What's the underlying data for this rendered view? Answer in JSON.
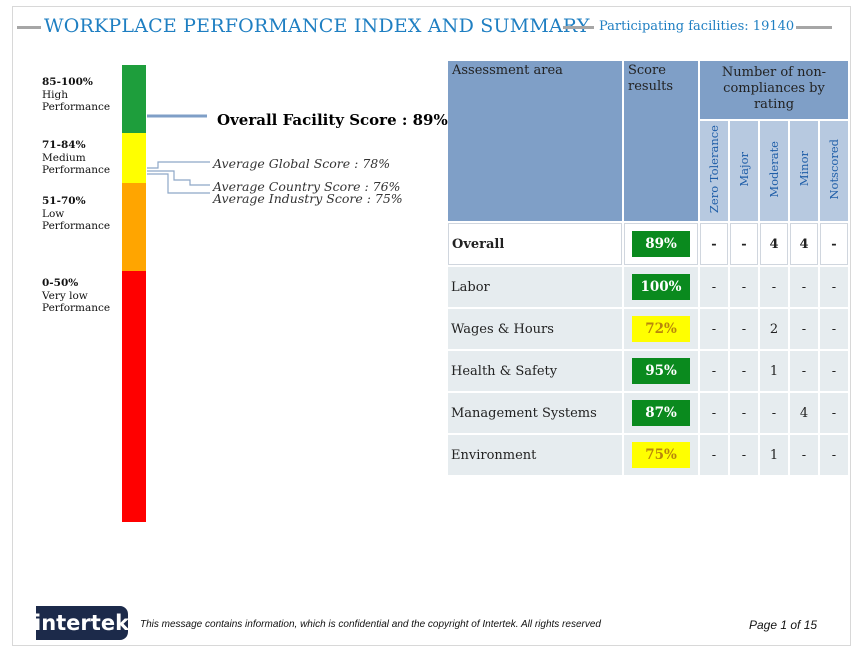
{
  "header": {
    "title": "WORKPLACE PERFORMANCE INDEX AND SUMMARY",
    "participating": "Participating facilities: 19140"
  },
  "bands": [
    {
      "range": "85-100%",
      "label1": "High",
      "label2": "Performance",
      "color": "#1e9e3c"
    },
    {
      "range": "71-84%",
      "label1": "Medium",
      "label2": "Performance",
      "color": "#ffff00"
    },
    {
      "range": "51-70%",
      "label1": "Low",
      "label2": "Performance",
      "color": "#ffa500"
    },
    {
      "range": "0-50%",
      "label1": "Very low",
      "label2": "Performance",
      "color": "#ff0000"
    }
  ],
  "scores": {
    "overall_facility": "Overall Facility Score : 89%",
    "average_global": "Average Global Score : 78%",
    "average_country": "Average Country Score : 76%",
    "average_industry": "Average Industry Score : 75%"
  },
  "table": {
    "col_area": "Assessment area",
    "col_score": "Score results",
    "col_nc": "Number of non-compliances by rating",
    "ratings": [
      "Zero Tolerance",
      "Major",
      "Moderate",
      "Minor",
      "Notscored"
    ],
    "rows": [
      {
        "area": "Overall",
        "score": "89%",
        "score_color": "green",
        "nc": [
          "-",
          "-",
          "4",
          "4",
          "-"
        ]
      },
      {
        "area": "Labor",
        "score": "100%",
        "score_color": "green",
        "nc": [
          "-",
          "-",
          "-",
          "-",
          "-"
        ]
      },
      {
        "area": "Wages & Hours",
        "score": "72%",
        "score_color": "yellow",
        "nc": [
          "-",
          "-",
          "2",
          "-",
          "-"
        ]
      },
      {
        "area": "Health & Safety",
        "score": "95%",
        "score_color": "green",
        "nc": [
          "-",
          "-",
          "1",
          "-",
          "-"
        ]
      },
      {
        "area": "Management Systems",
        "score": "87%",
        "score_color": "green",
        "nc": [
          "-",
          "-",
          "-",
          "4",
          "-"
        ]
      },
      {
        "area": "Environment",
        "score": "75%",
        "score_color": "yellow",
        "nc": [
          "-",
          "-",
          "1",
          "-",
          "-"
        ]
      }
    ]
  },
  "colors": {
    "green": "#0a8a1e",
    "yellow": "#ffff00",
    "header_blue": "#7f9fc7",
    "title_blue": "#1f7fc2"
  },
  "footer": {
    "logo": "intertek",
    "notice": "This message contains information, which is confidential and the copyright of Intertek. All rights reserved",
    "page": "Page 1 of 15"
  }
}
